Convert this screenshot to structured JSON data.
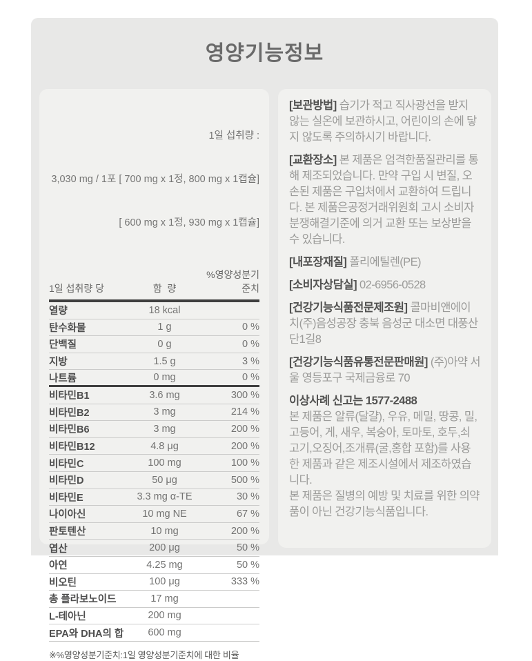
{
  "title": "영양기능정보",
  "colors": {
    "page_bg": "#ffffff",
    "card_bg": "#e8e8e7",
    "panel_bg": "#f1f1ef",
    "title_text": "#6a6a6a",
    "row_label_text": "#4e4e4e",
    "row_value_text": "#737372",
    "divider_dark": "#3f3f3f",
    "divider_light": "#cbcbca",
    "info_label_text": "#525251",
    "info_body_text": "#9b9b99"
  },
  "nutrition_table": {
    "serving_lines": [
      "1일 섭취량 :",
      "3,030 mg / 1포 [ 700 mg x 1정, 800 mg x 1캡슐]",
      "[ 600 mg x 1정, 930 mg x 1캡슐]"
    ],
    "header": {
      "col1": "1일 섭취량 당",
      "col2": "함  량",
      "col3": "%영양성분기준치"
    },
    "rows": [
      {
        "label": "열량",
        "amount": "18 kcal",
        "percent": "",
        "thick": false
      },
      {
        "label": "탄수화물",
        "amount": "1 g",
        "percent": "0 %",
        "thick": false
      },
      {
        "label": "단백질",
        "amount": "0 g",
        "percent": "0 %",
        "thick": false
      },
      {
        "label": "지방",
        "amount": "1.5 g",
        "percent": "3 %",
        "thick": false
      },
      {
        "label": "나트륨",
        "amount": "0 mg",
        "percent": "0 %",
        "thick": true
      },
      {
        "label": "비타민B1",
        "amount": "3.6 mg",
        "percent": "300 %",
        "thick": false
      },
      {
        "label": "비타민B2",
        "amount": "3 mg",
        "percent": "214 %",
        "thick": false
      },
      {
        "label": "비타민B6",
        "amount": "3 mg",
        "percent": "200 %",
        "thick": false
      },
      {
        "label": "비타민B12",
        "amount": "4.8 μg",
        "percent": "200 %",
        "thick": false
      },
      {
        "label": "비타민C",
        "amount": "100 mg",
        "percent": "100 %",
        "thick": false
      },
      {
        "label": "비타민D",
        "amount": "50 μg",
        "percent": "500 %",
        "thick": false
      },
      {
        "label": "비타민E",
        "amount": "3.3 mg α-TE",
        "percent": "30 %",
        "thick": false
      },
      {
        "label": "나이아신",
        "amount": "10 mg NE",
        "percent": "67 %",
        "thick": false
      },
      {
        "label": "판토텐산",
        "amount": "10 mg",
        "percent": "200 %",
        "thick": false
      },
      {
        "label": "엽산",
        "amount": "200 μg",
        "percent": "50 %",
        "thick": false
      },
      {
        "label": "아연",
        "amount": "4.25 mg",
        "percent": "50 %",
        "thick": false
      },
      {
        "label": "비오틴",
        "amount": "100 μg",
        "percent": "333 %",
        "thick": false
      },
      {
        "label": "총 플라보노이드",
        "amount": "17 mg",
        "percent": "",
        "thick": false
      },
      {
        "label": "L-테아닌",
        "amount": "200 mg",
        "percent": "",
        "thick": false
      },
      {
        "label": "EPA와 DHA의 합",
        "amount": "600 mg",
        "percent": "",
        "thick": false
      }
    ],
    "footnote": "※%영양성분기준치:1일 영양성분기준치에 대한 비율"
  },
  "info_sections": [
    {
      "label": "[보관방법]",
      "text": "습기가 적고 직사광선을 받지 않는 실온에 보관하시고, 어린이의 손에 닿지 않도록 주의하시기 바랍니다.",
      "block": false
    },
    {
      "label": "[교환장소]",
      "text": "본 제품은 엄격한품질관리를 통해 제조되었습니다. 만약 구입 시 변질, 오손된 제품은 구입처에서 교환하여 드립니다. 본 제품은공정거래위원회 고시 소비자분쟁해결기준에 의거 교환 또는 보상받을 수 있습니다.",
      "block": false
    },
    {
      "label": "[내포장재질]",
      "text": "폴리에틸렌(PE)",
      "block": false
    },
    {
      "label": "[소비자상담실]",
      "text": "02-6956-0528",
      "block": false
    },
    {
      "label": "[건강기능식품전문제조원]",
      "text": "콜마비앤에이치(주)음성공장 충북 음성군 대소면 대풍산단1길8",
      "block": false
    },
    {
      "label": "[건강기능식품유통전문판매원]",
      "text": "(주)아약 서울 영등포구 국제금융로 70",
      "block": false
    },
    {
      "label": "이상사례 신고는 1577-2488",
      "text": "본 제품은 알류(달걀), 우유, 메밀, 땅콩, 밀, 고등어, 게, 새우, 복숭아, 토마토, 호두,쇠고기,오징어,조개류(굴,홍합 포함)를 사용한 제품과 같은 제조시설에서 제조하였습니다.\n본 제품은 질병의 예방 및 치료를 위한 의약품이 아닌 건강기능식품입니다.",
      "block": true
    }
  ]
}
